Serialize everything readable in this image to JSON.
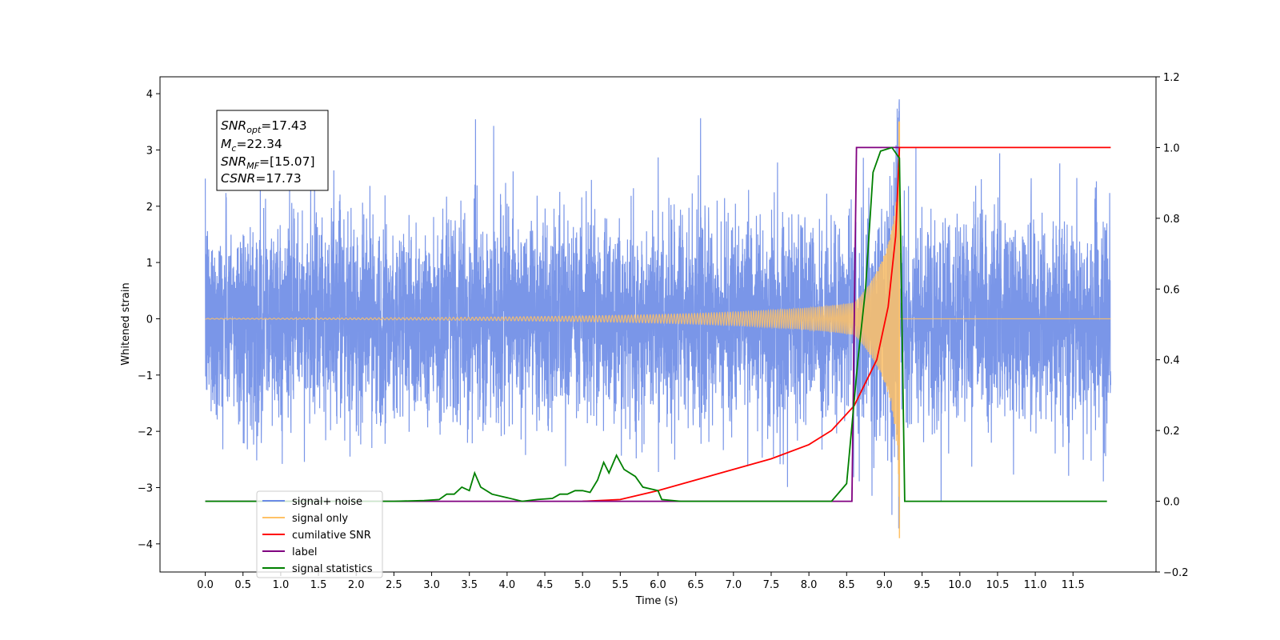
{
  "chart_data": {
    "type": "line",
    "xlabel": "Time (s)",
    "ylabel": "Whitened strain",
    "xlim": [
      -0.6,
      12.6
    ],
    "ylim": [
      -4.5,
      4.3
    ],
    "y2lim": [
      -0.2,
      1.2
    ],
    "x_ticks": [
      "0.0",
      "0.5",
      "1.0",
      "1.5",
      "2.0",
      "2.5",
      "3.0",
      "3.5",
      "4.0",
      "4.5",
      "5.0",
      "5.5",
      "6.0",
      "6.5",
      "7.0",
      "7.5",
      "8.0",
      "8.5",
      "9.0",
      "9.5",
      "10.0",
      "10.5",
      "11.0",
      "11.5"
    ],
    "y_ticks": [
      "4",
      "3",
      "2",
      "1",
      "0",
      "−1",
      "−2",
      "−3",
      "−4"
    ],
    "y2_ticks": [
      "1.2",
      "1.0",
      "0.8",
      "0.6",
      "0.4",
      "0.2",
      "0.0",
      "−0.2"
    ],
    "stats_box": {
      "snr_opt": {
        "base": "SNR",
        "sub": "opt",
        "value": "=17.43"
      },
      "mc": {
        "base": "M",
        "sub": "c",
        "value": "=22.34"
      },
      "snr_mf": {
        "base": "SNR",
        "sub": "MF",
        "value": "=[15.07]"
      },
      "csnr": {
        "base": "CSNR",
        "sub": "",
        "value": "=17.73"
      }
    },
    "series": [
      {
        "name": "signal+ noise",
        "axis": "left",
        "color": "#6b8be6",
        "noise_std": 0.9,
        "x_range": [
          0.0,
          12.0
        ]
      },
      {
        "name": "signal only",
        "axis": "left",
        "color": "#ffc266",
        "merger_time": 9.2,
        "x_range": [
          0.0,
          12.0
        ],
        "peak": 3.5,
        "trough": -3.9
      },
      {
        "name": "cumilative SNR",
        "axis": "right",
        "color": "#ff0000",
        "points": [
          [
            5.0,
            0.0
          ],
          [
            5.5,
            0.005
          ],
          [
            6.0,
            0.03
          ],
          [
            6.5,
            0.06
          ],
          [
            7.0,
            0.09
          ],
          [
            7.5,
            0.12
          ],
          [
            8.0,
            0.16
          ],
          [
            8.3,
            0.2
          ],
          [
            8.6,
            0.27
          ],
          [
            8.9,
            0.4
          ],
          [
            9.05,
            0.55
          ],
          [
            9.15,
            0.75
          ],
          [
            9.2,
            1.0
          ],
          [
            12.0,
            1.0
          ]
        ]
      },
      {
        "name": "label",
        "axis": "right",
        "color": "#800080",
        "points": [
          [
            0.0,
            0.0
          ],
          [
            8.57,
            0.0
          ],
          [
            8.63,
            1.0
          ],
          [
            9.2,
            1.0
          ],
          [
            9.2,
            1.0
          ]
        ]
      },
      {
        "name": "signal statistics",
        "axis": "right",
        "color": "#008000",
        "points": [
          [
            0.0,
            0.0
          ],
          [
            2.5,
            0.0
          ],
          [
            2.9,
            0.002
          ],
          [
            3.1,
            0.005
          ],
          [
            3.2,
            0.02
          ],
          [
            3.3,
            0.02
          ],
          [
            3.4,
            0.04
          ],
          [
            3.5,
            0.03
          ],
          [
            3.57,
            0.08
          ],
          [
            3.65,
            0.04
          ],
          [
            3.8,
            0.02
          ],
          [
            4.0,
            0.01
          ],
          [
            4.2,
            0.0
          ],
          [
            4.4,
            0.005
          ],
          [
            4.6,
            0.008
          ],
          [
            4.7,
            0.02
          ],
          [
            4.8,
            0.02
          ],
          [
            4.9,
            0.03
          ],
          [
            5.0,
            0.03
          ],
          [
            5.1,
            0.025
          ],
          [
            5.2,
            0.06
          ],
          [
            5.28,
            0.11
          ],
          [
            5.35,
            0.08
          ],
          [
            5.45,
            0.13
          ],
          [
            5.55,
            0.09
          ],
          [
            5.7,
            0.07
          ],
          [
            5.8,
            0.04
          ],
          [
            6.0,
            0.03
          ],
          [
            6.05,
            0.005
          ],
          [
            6.3,
            0.0
          ],
          [
            8.3,
            0.0
          ],
          [
            8.5,
            0.05
          ],
          [
            8.65,
            0.4
          ],
          [
            8.75,
            0.6
          ],
          [
            8.85,
            0.93
          ],
          [
            8.95,
            0.99
          ],
          [
            9.1,
            1.0
          ],
          [
            9.2,
            0.97
          ],
          [
            9.27,
            0.0
          ],
          [
            11.95,
            0.0
          ]
        ]
      }
    ]
  }
}
